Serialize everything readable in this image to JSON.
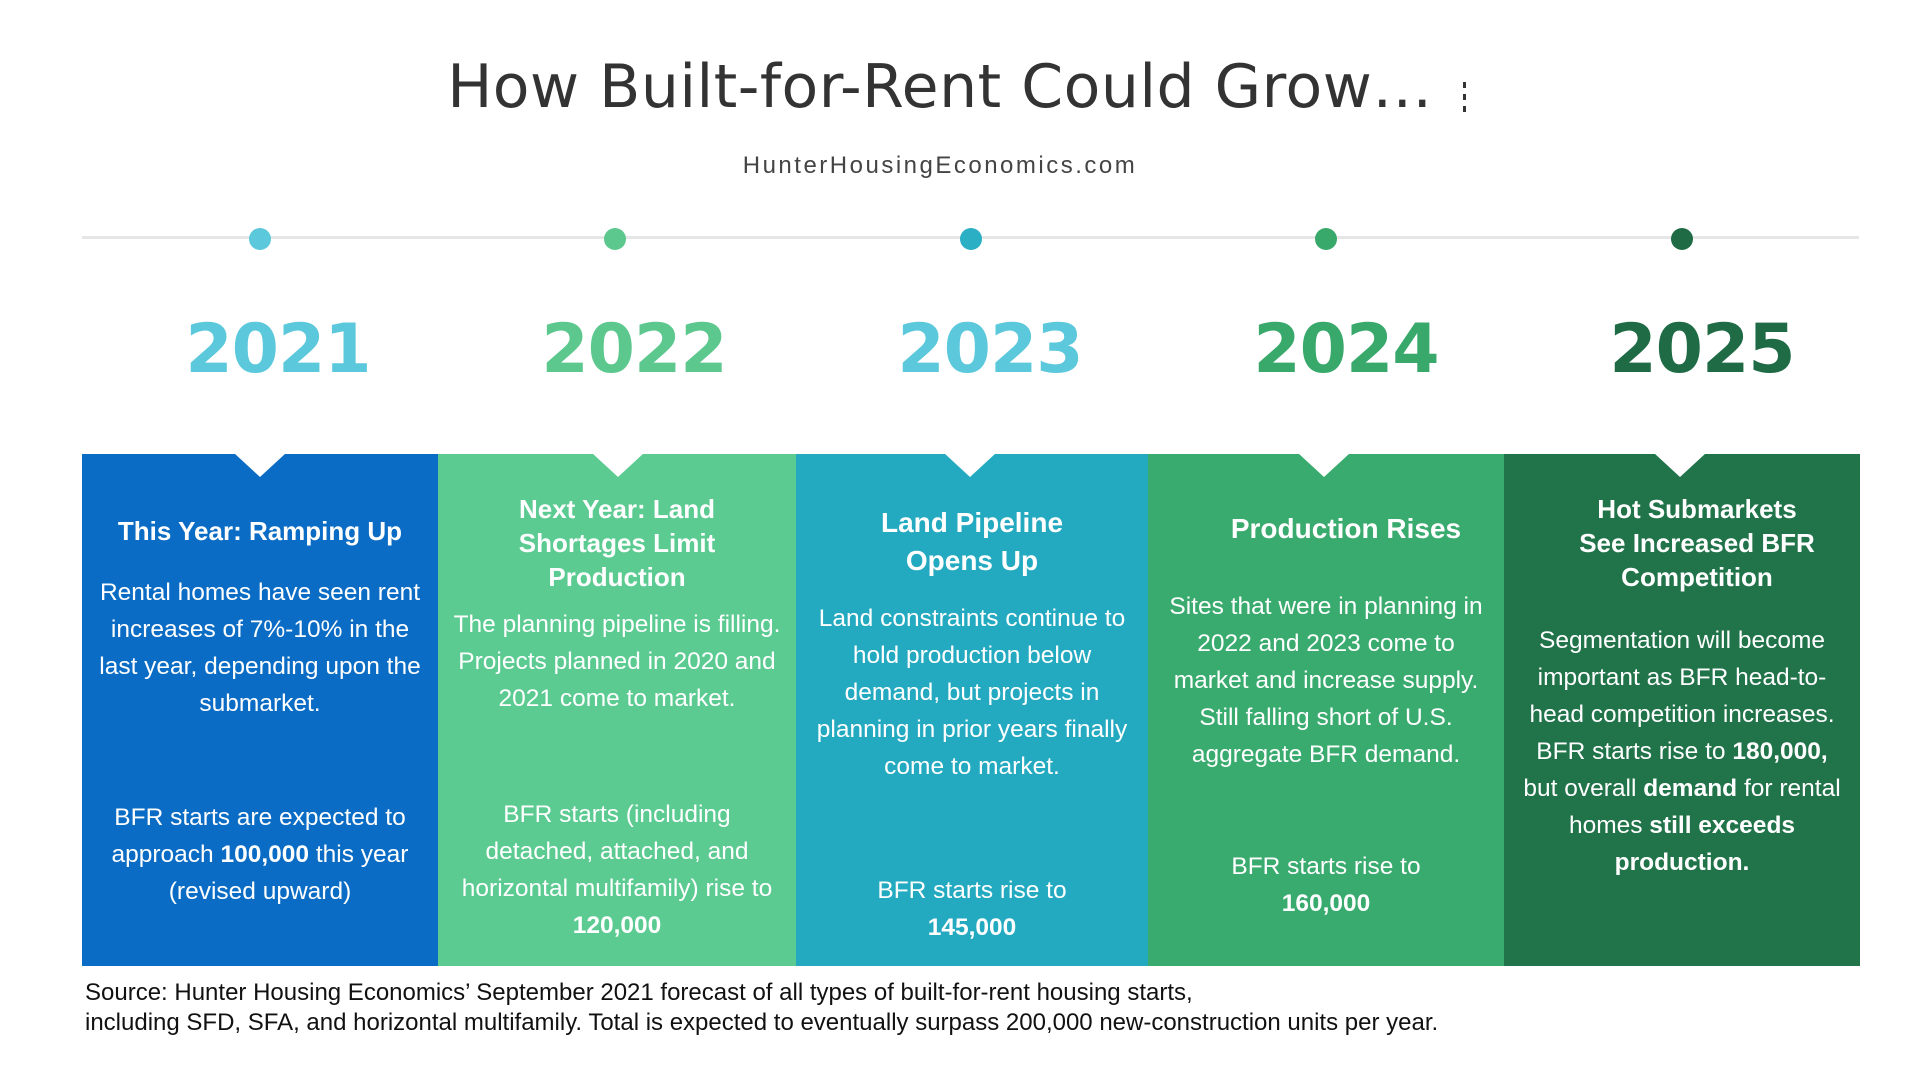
{
  "header": {
    "title": "How Built-for-Rent Could Grow…",
    "website": "HunterHousingEconomics.com"
  },
  "colors": {
    "y2021": "#5bc8dc",
    "y2022": "#5cc88e",
    "y2023": "#2aafc4",
    "y2024": "#38a86b",
    "y2025": "#1e6b45",
    "panel2021": "#0a6cc4",
    "panel2022": "#5ccb92",
    "panel2023": "#24aac0",
    "panel2024": "#3aab6e",
    "panel2025": "#21734a"
  },
  "timeline": [
    {
      "year": "2021",
      "title": "This Year: Ramping Up",
      "body": [
        {
          "t": "Rental homes have seen rent increases of 7%-10% in the last year, depending upon the submarket."
        },
        {
          "t": "BFR starts are expected to approach ",
          "b": "100,000",
          "t2": " this year (revised upward)"
        }
      ]
    },
    {
      "year": "2022",
      "title": "Next Year: Land Shortages Limit Production",
      "body": [
        {
          "t": "The planning pipeline is filling. Projects planned in 2020 and 2021 come to market."
        },
        {
          "t": "BFR starts (including detached, attached, and horizontal multifamily) rise to ",
          "b": "120,000",
          "t2": ""
        }
      ]
    },
    {
      "year": "2023",
      "title": "Land Pipeline Opens Up",
      "body": [
        {
          "t": "Land constraints continue to hold production below demand, but projects in planning in prior years finally come to market."
        },
        {
          "t": "BFR starts rise to ",
          "b": "145,000",
          "t2": ""
        }
      ]
    },
    {
      "year": "2024",
      "title": "Production Rises",
      "body": [
        {
          "t": "Sites that were in planning in 2022 and 2023 come to market and increase supply. Still falling short of U.S. aggregate BFR demand."
        },
        {
          "t": "BFR starts rise to ",
          "b": "160,000",
          "t2": ""
        }
      ]
    },
    {
      "year": "2025",
      "title": "Hot Submarkets See Increased BFR Competition",
      "body": [
        {
          "t": "Segmentation will become important as BFR head-to-head competition increases. BFR starts rise to ",
          "b": "180,000,",
          "t2": " but overall ",
          "b2": "demand",
          "t3": " for rental homes ",
          "b3": "still exceeds production.",
          "t4": ""
        }
      ]
    }
  ],
  "source": {
    "line1": "Source:  Hunter Housing Economics’ September 2021 forecast of all types of built-for-rent housing starts,",
    "line2": "including SFD, SFA, and horizontal multifamily. Total is expected to eventually surpass 200,000 new-construction units per year."
  }
}
